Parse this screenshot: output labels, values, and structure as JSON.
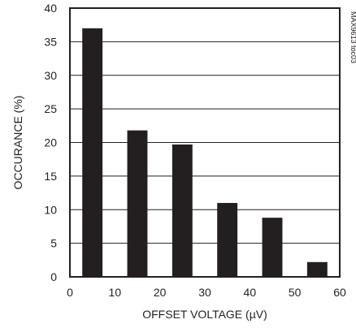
{
  "chart_data": {
    "type": "bar",
    "x": [
      5,
      15,
      25,
      35,
      45,
      55
    ],
    "values": [
      37,
      21.8,
      19.7,
      11,
      8.8,
      2.2
    ],
    "bar_width": 4.5,
    "xlabel": "OFFSET VOLTAGE (µV)",
    "ylabel": "OCCURANCE (%)",
    "xlim": [
      0,
      60
    ],
    "ylim": [
      0,
      40
    ],
    "xticks": [
      "0",
      "10",
      "20",
      "30",
      "40",
      "50",
      "60"
    ],
    "yticks": [
      "0",
      "5",
      "10",
      "15",
      "20",
      "25",
      "30",
      "35",
      "40"
    ],
    "grid": "horizontal",
    "bar_color": "#231f20",
    "side_label": "MAX9613 toc03"
  }
}
